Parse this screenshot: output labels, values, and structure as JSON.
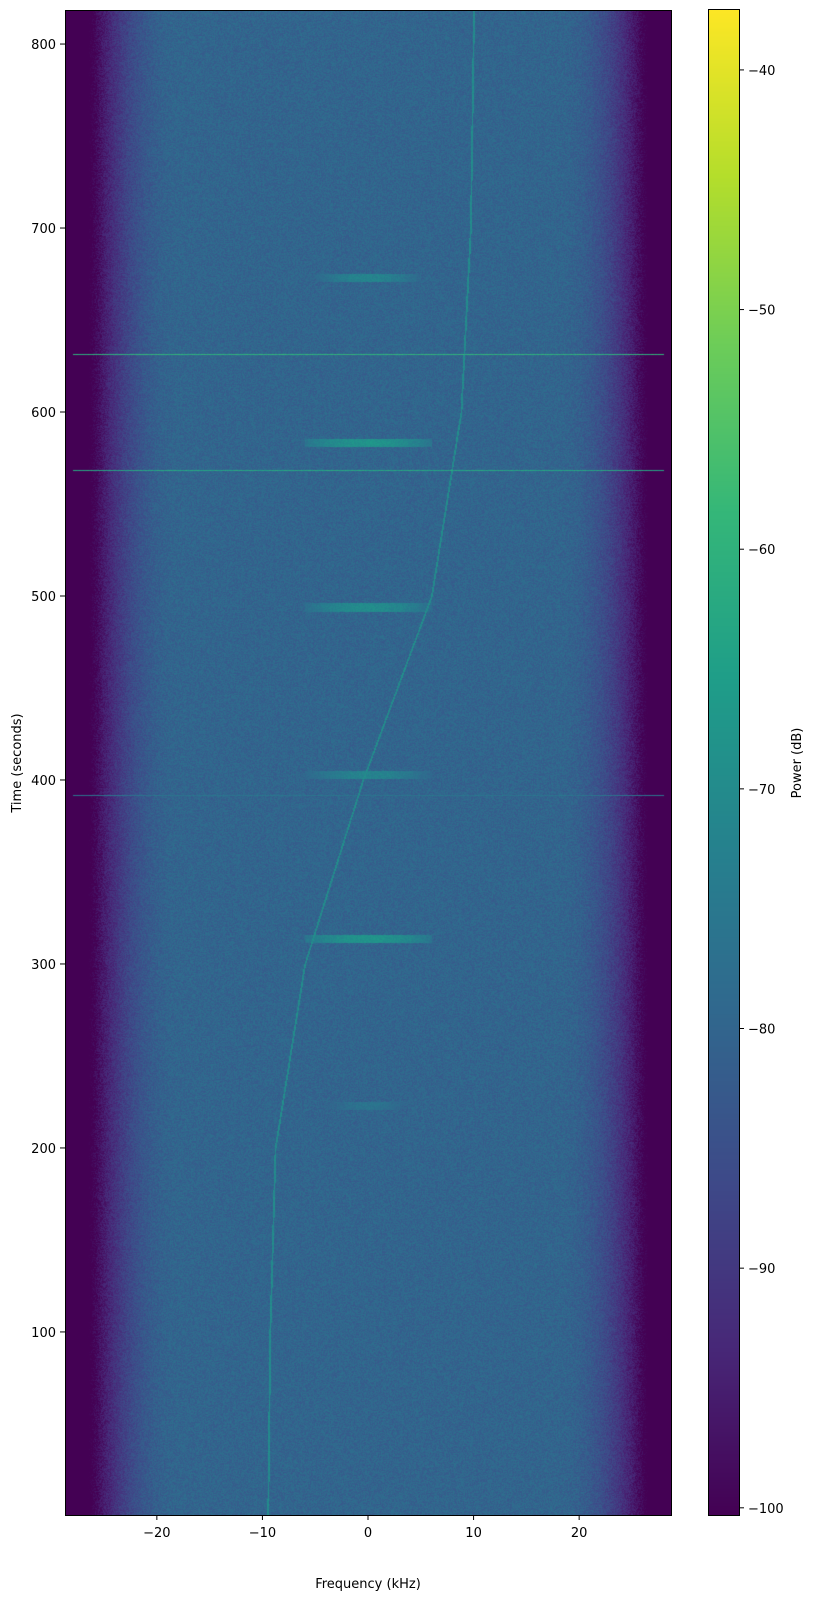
{
  "chart_data": {
    "type": "heatmap",
    "xlabel": "Frequency (kHz)",
    "ylabel": "Time (seconds)",
    "colorbar_label": "Power (dB)",
    "colormap": "viridis",
    "xlim": [
      -28.7,
      28.7
    ],
    "ylim": [
      0.5,
      818.5
    ],
    "clim": [
      -100.3,
      -37.5
    ],
    "xticks": [
      -20,
      -10,
      0,
      10,
      20
    ],
    "xtick_labels": [
      "−20",
      "−10",
      "0",
      "10",
      "20"
    ],
    "yticks": [
      100,
      200,
      300,
      400,
      500,
      600,
      700,
      800
    ],
    "ytick_labels": [
      "100",
      "200",
      "300",
      "400",
      "500",
      "600",
      "700",
      "800"
    ],
    "cticks": [
      -40,
      -50,
      -60,
      -70,
      -80,
      -90,
      -100
    ],
    "ctick_labels": [
      "−40",
      "−50",
      "−60",
      "−70",
      "−80",
      "−90",
      "−100"
    ],
    "noise_floor_db": -80,
    "band_edge_khz": 26,
    "carrier_trace": {
      "t": [
        0,
        100,
        200,
        300,
        400,
        500,
        600,
        700,
        818
      ],
      "f": [
        -9.5,
        -9.3,
        -8.8,
        -6.0,
        -0.5,
        6.0,
        8.8,
        9.7,
        10.0
      ],
      "power_db": -70
    },
    "bursts": [
      {
        "t": 223,
        "f_range": [
          -4,
          4
        ],
        "power_db": -76
      },
      {
        "t": 314,
        "f_range": [
          -6,
          6
        ],
        "power_db": -68
      },
      {
        "t": 403,
        "f_range": [
          -6,
          6
        ],
        "power_db": -72
      },
      {
        "t": 494,
        "f_range": [
          -6,
          6
        ],
        "power_db": -70
      },
      {
        "t": 583.5,
        "f_range": [
          -6,
          6
        ],
        "power_db": -68
      },
      {
        "t": 673,
        "f_range": [
          -5,
          5
        ],
        "power_db": -72
      }
    ],
    "broadband_lines": [
      {
        "t": 631.5,
        "power_db": -60
      },
      {
        "t": 568.5,
        "power_db": -63
      },
      {
        "t": 391.8,
        "power_db": -76
      }
    ]
  }
}
